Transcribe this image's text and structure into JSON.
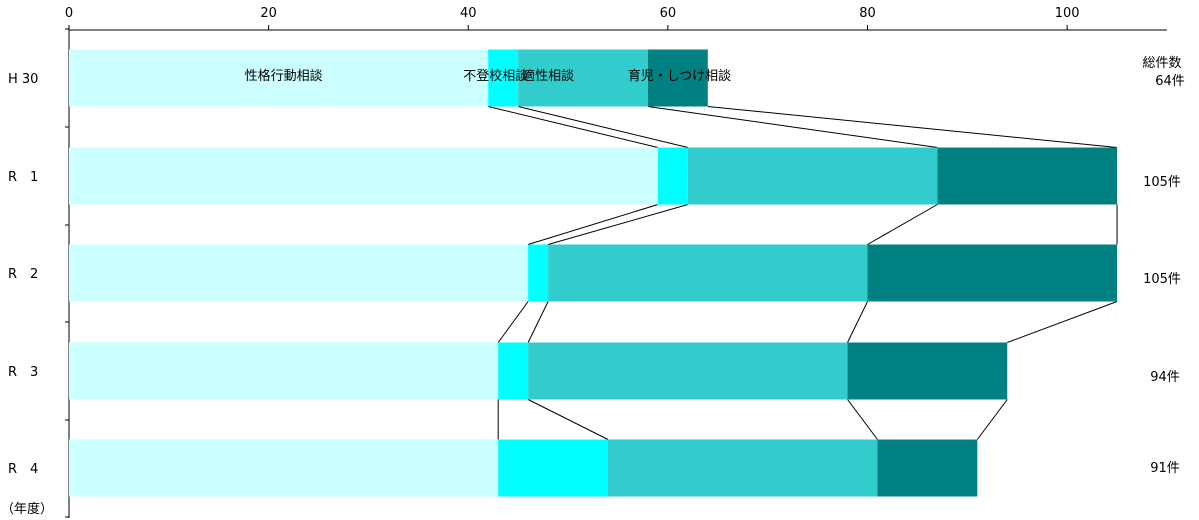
{
  "chart_data": {
    "type": "bar",
    "stacked": true,
    "orientation": "horizontal",
    "categories": [
      "H 30",
      "R　1",
      "R　2",
      "R　3",
      "R　4"
    ],
    "series": [
      {
        "name": "性格行動相談",
        "values": [
          42,
          59,
          46,
          43,
          43
        ],
        "color": "#ccffff"
      },
      {
        "name": "不登校相談",
        "values": [
          3,
          3,
          2,
          3,
          11
        ],
        "color": "#00ffff"
      },
      {
        "name": "適性相談",
        "values": [
          13,
          25,
          32,
          32,
          27
        ],
        "color": "#33cccc"
      },
      {
        "name": "育児・しつけ相談",
        "values": [
          6,
          18,
          25,
          16,
          10
        ],
        "color": "#008080"
      }
    ],
    "totals_label": "総件数",
    "totals": [
      "64件",
      "105件",
      "105件",
      "94件",
      "91件"
    ],
    "xlim": [
      0,
      107
    ],
    "xticks": [
      "0",
      "20",
      "40",
      "60",
      "80",
      "100"
    ],
    "ylabel": "（年度）",
    "connector_lines": true,
    "grid": false
  }
}
